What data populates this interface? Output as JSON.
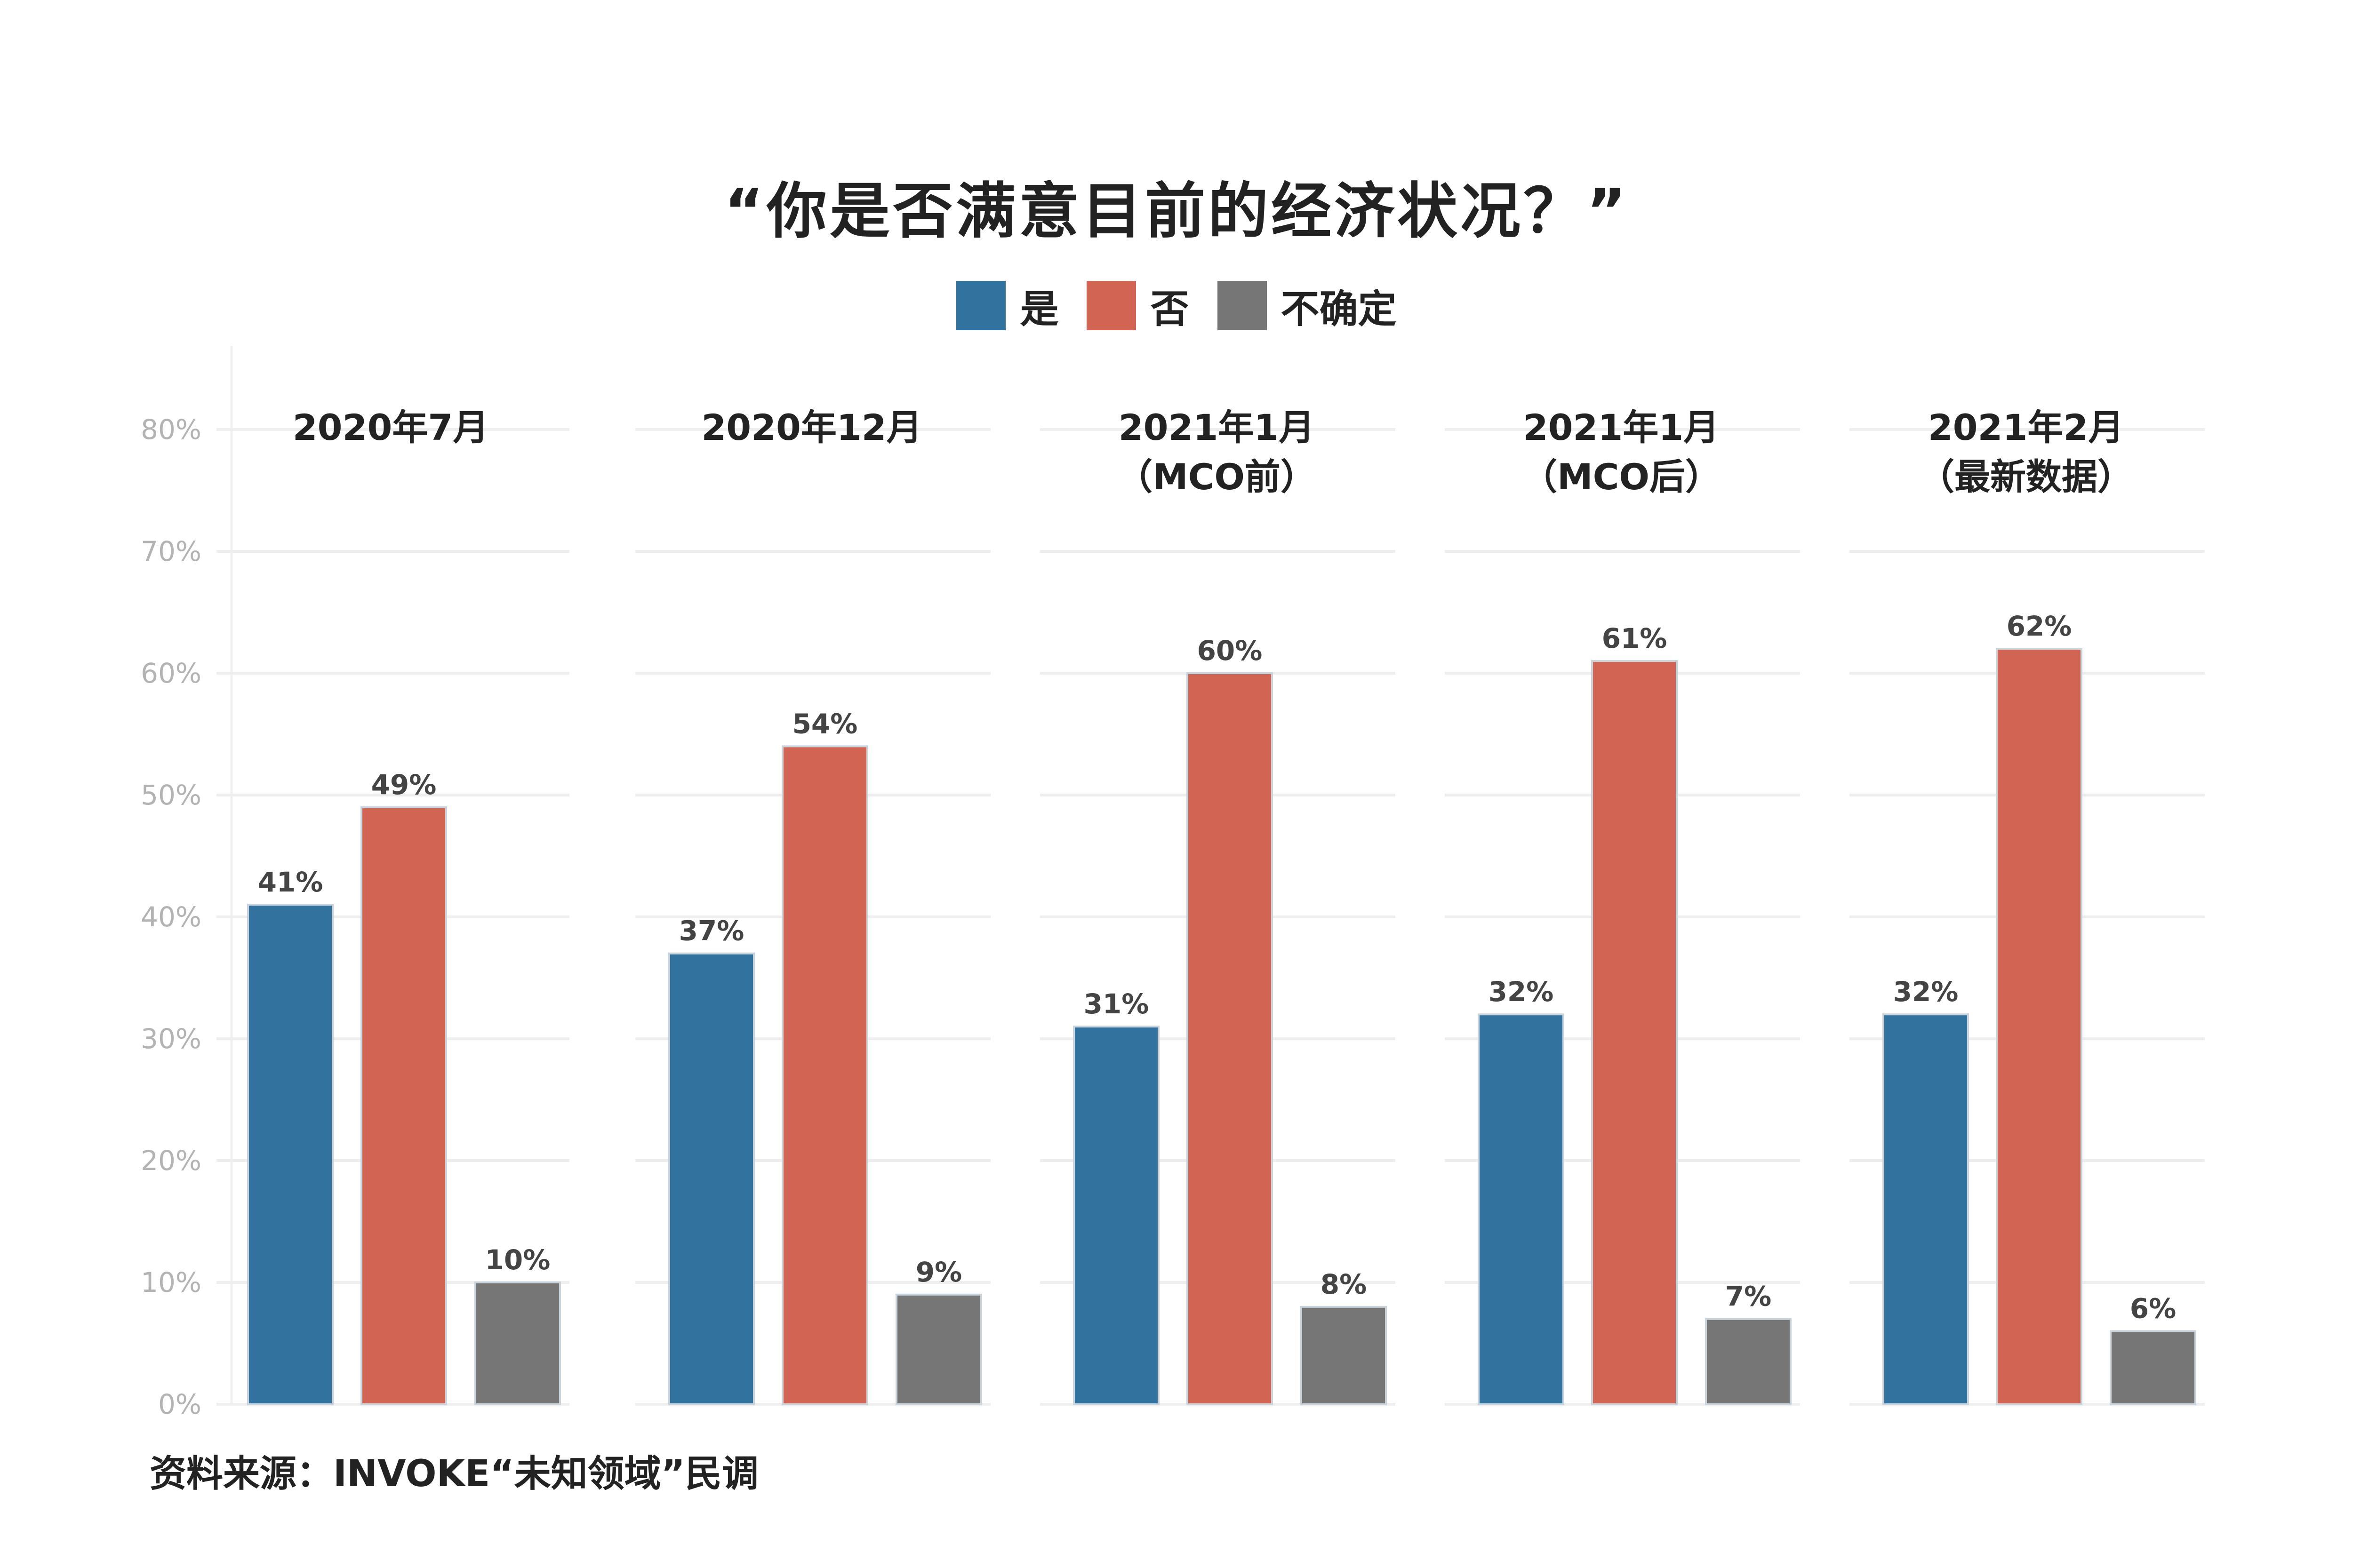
{
  "chart_data": {
    "type": "bar",
    "title": "“你是否满意目前的经济状况？”",
    "series": [
      {
        "name": "是",
        "color": "#32729E",
        "values": [
          41,
          37,
          31,
          32,
          32
        ]
      },
      {
        "name": "否",
        "color": "#D26454",
        "values": [
          49,
          54,
          60,
          61,
          62
        ]
      },
      {
        "name": "不确定",
        "color": "#767676",
        "values": [
          10,
          9,
          8,
          7,
          6
        ]
      }
    ],
    "categories": [
      [
        "2020年7月"
      ],
      [
        "2020年12月"
      ],
      [
        "2021年1月",
        "（MCO前）"
      ],
      [
        "2021年1月",
        "（MCO后）"
      ],
      [
        "2021年2月",
        "（最新数据）"
      ]
    ],
    "data_label_suffix": "%",
    "yticks": [
      "0%",
      "10%",
      "20%",
      "30%",
      "40%",
      "50%",
      "60%",
      "70%",
      "80%"
    ],
    "ylim": [
      0,
      80
    ],
    "grid": true,
    "legend_position": "top-center"
  },
  "source_text": "资料来源：INVOKE“未知领域”民调"
}
